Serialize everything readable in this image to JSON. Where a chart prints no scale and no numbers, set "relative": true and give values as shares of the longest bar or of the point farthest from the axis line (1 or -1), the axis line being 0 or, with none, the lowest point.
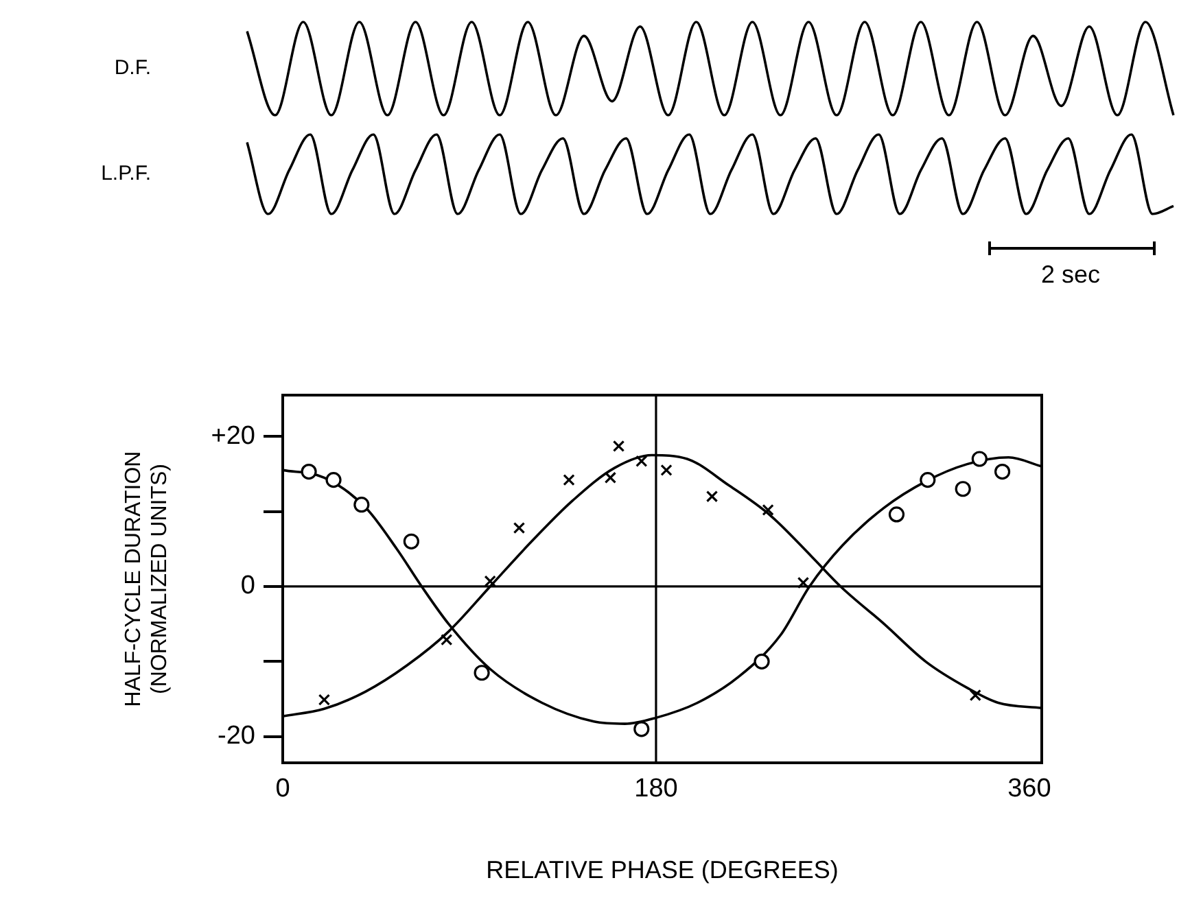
{
  "chart_data": [
    {
      "type": "line",
      "relative": true,
      "marker": "none",
      "categories": [
        null,
        null,
        null,
        null,
        null,
        null,
        null,
        null,
        null,
        null,
        null,
        null,
        null,
        null,
        null,
        null,
        null,
        null,
        null,
        null,
        null,
        null,
        null,
        null,
        null,
        null,
        null,
        null,
        null,
        null,
        null,
        null,
        null,
        null
      ],
      "series": [
        {
          "name": "D.F.",
          "color": "#000000",
          "values": [
            0.9,
            0.0,
            1.0,
            0.0,
            1.0,
            0.0,
            1.0,
            0.0,
            1.0,
            0.0,
            1.0,
            0.0,
            0.85,
            0.15,
            0.95,
            0.0,
            1.0,
            0.0,
            1.0,
            0.0,
            1.0,
            0.0,
            1.0,
            0.0,
            1.0,
            0.0,
            1.0,
            0.0,
            0.85,
            0.1,
            0.95,
            0.0,
            1.0,
            0.0
          ]
        }
      ]
    },
    {
      "type": "line",
      "relative": true,
      "marker": "none",
      "categories": [
        null,
        null,
        null,
        null,
        null,
        null,
        null,
        null,
        null,
        null,
        null,
        null,
        null,
        null,
        null,
        null,
        null,
        null,
        null,
        null,
        null,
        null,
        null,
        null,
        null,
        null,
        null,
        null,
        null,
        null,
        null,
        null,
        null,
        null,
        null,
        null,
        null,
        null,
        null,
        null,
        null,
        null,
        null,
        null,
        null
      ],
      "series": [
        {
          "name": "L.P.F.",
          "color": "#000000",
          "values": [
            0.9,
            0.0,
            0.55,
            1.0,
            0.0,
            0.55,
            1.0,
            0.0,
            0.55,
            1.0,
            0.0,
            0.55,
            1.0,
            0.0,
            0.55,
            0.95,
            0.0,
            0.55,
            0.95,
            0.0,
            0.55,
            1.0,
            0.0,
            0.55,
            1.0,
            0.0,
            0.55,
            0.95,
            0.0,
            0.55,
            1.0,
            0.0,
            0.55,
            0.95,
            0.0,
            0.55,
            0.95,
            0.0,
            0.55,
            0.95,
            0.0,
            0.55,
            1.0,
            0.0,
            0.1
          ]
        }
      ],
      "annotations": [
        "2 sec"
      ]
    },
    {
      "type": "scatter",
      "xlabel": "RELATIVE PHASE (DEGREES)",
      "ylabel": "HALF-CYCLE DURATION\n(NORMALIZED UNITS)",
      "xlim": [
        0,
        366
      ],
      "xticks": [
        0,
        180,
        360
      ],
      "ylim": [
        -23.5,
        25.5
      ],
      "yticks": [
        {
          "value": -20,
          "label": "-20"
        },
        {
          "value": -10,
          "label": null
        },
        0,
        {
          "value": 10,
          "label": null
        },
        {
          "value": 20,
          "label": "+20"
        }
      ],
      "ref_lines": [
        {
          "axis": "y",
          "value": 0
        },
        {
          "axis": "x",
          "value": 180
        }
      ],
      "series": [
        {
          "type": "scatter",
          "marker": "circle",
          "color": "#000000",
          "x": [
            12.6,
            24.5,
            38,
            62,
            96,
            173,
            231,
            296,
            311,
            328,
            336,
            347
          ],
          "values": [
            15.3,
            14.2,
            10.9,
            6,
            -11.5,
            -19,
            -10,
            9.6,
            14.2,
            13,
            17,
            15.3
          ]
        },
        {
          "type": "scatter",
          "marker": "cross",
          "color": "#000000",
          "x": [
            20,
            79,
            100,
            114,
            138,
            158,
            162,
            173,
            185,
            207,
            234,
            251,
            334
          ],
          "values": [
            -15.1,
            -7.1,
            0.7,
            7.8,
            14.2,
            14.5,
            18.7,
            16.7,
            15.5,
            12,
            10.2,
            0.5,
            -14.5
          ]
        },
        {
          "type": "line",
          "marker": "none",
          "color": "#000000",
          "x": [
            0,
            20,
            40,
            55,
            67,
            80,
            100,
            125,
            150,
            165,
            180,
            200,
            220,
            240,
            254,
            270,
            290,
            310,
            330,
            350,
            366
          ],
          "values": [
            15.5,
            14.5,
            10.5,
            5,
            0,
            -5,
            -11,
            -15.5,
            -18,
            -18.3,
            -17.5,
            -15.5,
            -12,
            -6.5,
            0,
            5.5,
            10.5,
            14,
            16.3,
            17.2,
            16
          ]
        },
        {
          "type": "line",
          "marker": "none",
          "color": "#000000",
          "x": [
            0,
            20,
            40,
            60,
            80,
            100,
            120,
            140,
            160,
            178,
            195,
            215,
            235,
            255,
            269,
            290,
            310,
            330,
            345,
            366
          ],
          "values": [
            -17.3,
            -16.3,
            -14,
            -10.5,
            -6,
            0,
            6,
            11.5,
            15.8,
            17.5,
            17,
            13.5,
            9.5,
            4,
            0,
            -5,
            -10,
            -13.5,
            -15.5,
            -16.2
          ]
        }
      ]
    }
  ]
}
